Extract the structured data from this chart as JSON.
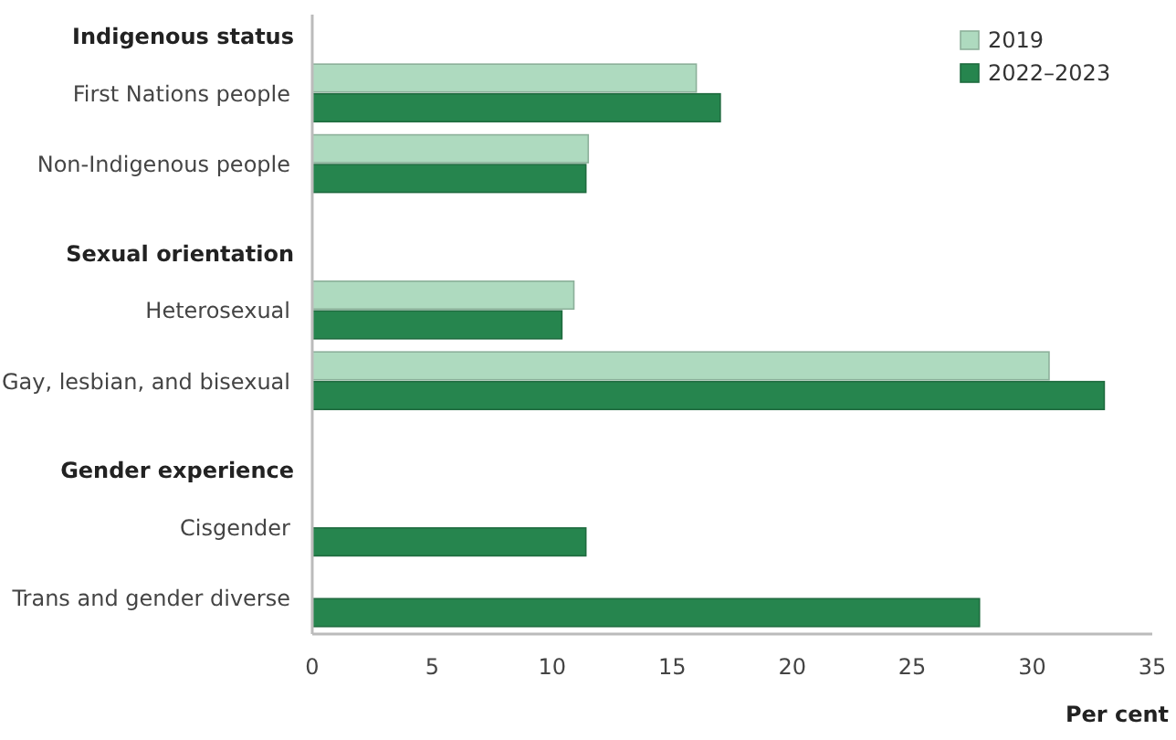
{
  "chart_data": {
    "type": "bar",
    "orientation": "horizontal",
    "categories": [
      "Indigenous status",
      "First Nations people",
      "Non-Indigenous people",
      "Sexual orientation",
      "Heterosexual",
      "Gay, lesbian, and bisexual",
      "Gender experience",
      "Cisgender",
      "Trans and gender diverse"
    ],
    "series": [
      {
        "name": "2019",
        "color": "#aedabf",
        "values": [
          null,
          16.0,
          11.5,
          null,
          10.9,
          30.7,
          null,
          null,
          null
        ]
      },
      {
        "name": "2022–2023",
        "color": "#26854e",
        "values": [
          null,
          17.0,
          11.4,
          null,
          10.4,
          33.0,
          null,
          11.4,
          27.8
        ]
      }
    ],
    "xlabel": "Per cent",
    "xlim": [
      0,
      35
    ],
    "xticks": [
      0,
      5,
      10,
      15,
      20,
      25,
      30,
      35
    ],
    "legend": "top right",
    "grid": false
  }
}
